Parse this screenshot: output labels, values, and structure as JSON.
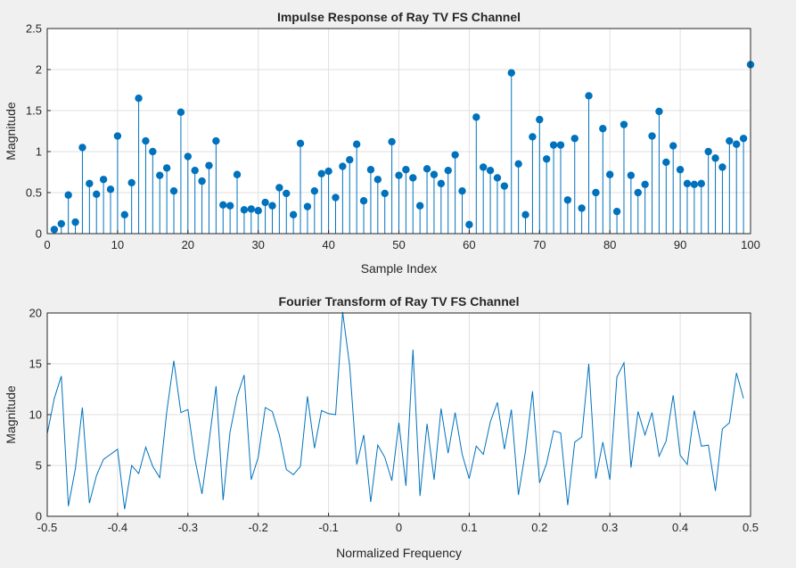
{
  "chart_data": [
    {
      "type": "stem",
      "title": "Impulse Response of Ray TV FS Channel",
      "xlabel": "Sample Index",
      "ylabel": "Magnitude",
      "xlim": [
        0,
        100
      ],
      "ylim": [
        0,
        2.5
      ],
      "xticks": [
        0,
        10,
        20,
        30,
        40,
        50,
        60,
        70,
        80,
        90,
        100
      ],
      "yticks": [
        0,
        0.5,
        1,
        1.5,
        2,
        2.5
      ],
      "xtick_labels": [
        "0",
        "10",
        "20",
        "30",
        "40",
        "50",
        "60",
        "70",
        "80",
        "90",
        "100"
      ],
      "ytick_labels": [
        "0",
        "0.5",
        "1",
        "1.5",
        "2",
        "2.5"
      ],
      "grid": true,
      "color": "#0072bd",
      "series": [
        {
          "x": [
            1,
            2,
            3,
            4,
            5,
            6,
            7,
            8,
            9,
            10,
            11,
            12,
            13,
            14,
            15,
            16,
            17,
            18,
            19,
            20,
            21,
            22,
            23,
            24,
            25,
            26,
            27,
            28,
            29,
            30,
            31,
            32,
            33,
            34,
            35,
            36,
            37,
            38,
            39,
            40,
            41,
            42,
            43,
            44,
            45,
            46,
            47,
            48,
            49,
            50,
            51,
            52,
            53,
            54,
            55,
            56,
            57,
            58,
            59,
            60,
            61,
            62,
            63,
            64,
            65,
            66,
            67,
            68,
            69,
            70,
            71,
            72,
            73,
            74,
            75,
            76,
            77,
            78,
            79,
            80,
            81,
            82,
            83,
            84,
            85,
            86,
            87,
            88,
            89,
            90,
            91,
            92,
            93,
            94,
            95,
            96,
            97,
            98,
            99,
            100
          ],
          "values": [
            0.05,
            0.12,
            0.47,
            0.14,
            1.05,
            0.61,
            0.48,
            0.66,
            0.54,
            1.19,
            0.23,
            0.62,
            1.65,
            1.13,
            1.0,
            0.71,
            0.8,
            0.52,
            1.48,
            0.94,
            0.77,
            0.64,
            0.83,
            1.13,
            0.35,
            0.34,
            0.72,
            0.29,
            0.3,
            0.28,
            0.38,
            0.34,
            0.56,
            0.49,
            0.23,
            1.1,
            0.33,
            0.52,
            0.73,
            0.76,
            0.44,
            0.82,
            0.9,
            1.09,
            0.4,
            0.78,
            0.66,
            0.49,
            1.12,
            0.71,
            0.78,
            0.68,
            0.34,
            0.79,
            0.72,
            0.61,
            0.77,
            0.96,
            0.52,
            0.11,
            1.42,
            0.81,
            0.77,
            0.68,
            0.58,
            1.96,
            0.85,
            0.23,
            1.18,
            1.39,
            0.91,
            1.08,
            1.08,
            0.41,
            1.16,
            0.31,
            1.68,
            0.5,
            1.28,
            0.72,
            0.27,
            1.33,
            0.71,
            0.5,
            0.6,
            1.19,
            1.49,
            0.87,
            1.07,
            0.78,
            0.61,
            0.6,
            0.61,
            1.0,
            0.92,
            0.81,
            1.13,
            1.09,
            1.16,
            2.06
          ]
        }
      ]
    },
    {
      "type": "line",
      "title": "Fourier Transform of Ray TV FS Channel",
      "xlabel": "Normalized Frequency",
      "ylabel": "Magnitude",
      "xlim": [
        -0.5,
        0.5
      ],
      "ylim": [
        0,
        20
      ],
      "xticks": [
        -0.5,
        -0.4,
        -0.3,
        -0.2,
        -0.1,
        0,
        0.1,
        0.2,
        0.3,
        0.4,
        0.5
      ],
      "yticks": [
        0,
        5,
        10,
        15,
        20
      ],
      "xtick_labels": [
        "-0.5",
        "-0.4",
        "-0.3",
        "-0.2",
        "-0.1",
        "0",
        "0.1",
        "0.2",
        "0.3",
        "0.4",
        "0.5"
      ],
      "ytick_labels": [
        "0",
        "5",
        "10",
        "15",
        "20"
      ],
      "grid": true,
      "color": "#0072bd",
      "x_start": -0.5,
      "x_step": 0.01,
      "series": [
        {
          "values": [
            8.1,
            11.6,
            13.8,
            1.0,
            4.7,
            10.7,
            1.3,
            4.0,
            5.6,
            6.1,
            6.6,
            0.7,
            5.0,
            4.2,
            6.8,
            4.9,
            3.8,
            10.3,
            15.3,
            10.2,
            10.5,
            5.6,
            2.2,
            7.3,
            12.8,
            1.6,
            8.3,
            11.8,
            13.9,
            3.6,
            5.8,
            10.7,
            10.3,
            8.0,
            4.6,
            4.1,
            4.9,
            11.8,
            6.7,
            10.4,
            10.1,
            10.0,
            20.1,
            14.8,
            5.1,
            8.0,
            1.4,
            7.0,
            5.8,
            3.5,
            9.2,
            3.0,
            16.4,
            2.0,
            9.1,
            3.6,
            10.6,
            6.2,
            10.2,
            6.1,
            3.7,
            6.9,
            6.1,
            9.3,
            11.2,
            6.6,
            10.5,
            2.1,
            6.4,
            12.3,
            3.3,
            5.2,
            8.4,
            8.2,
            1.1,
            7.3,
            7.8,
            15.0,
            3.7,
            7.3,
            3.6,
            13.7,
            15.1,
            4.8,
            10.3,
            8.0,
            10.2,
            5.9,
            7.4,
            11.9,
            6.0,
            5.1,
            10.4,
            6.9,
            7.0,
            2.5,
            8.6,
            9.2,
            14.1,
            11.6
          ]
        }
      ]
    }
  ]
}
